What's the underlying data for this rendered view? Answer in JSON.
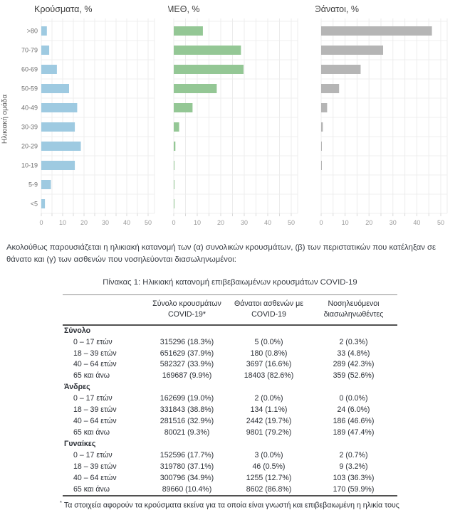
{
  "charts": {
    "ylabel": "Ηλικιακή ομάδα",
    "categories": [
      ">80",
      "70-79",
      "60-69",
      "50-59",
      "40-49",
      "30-39",
      "20-29",
      "10-19",
      "5-9",
      "<5"
    ],
    "xticks": [
      0,
      10,
      20,
      30,
      40,
      50
    ],
    "panels": [
      {
        "id": "cases",
        "title": "Κρούσματα, %",
        "color": "#9ecae1",
        "values": [
          2.6,
          3.7,
          7.3,
          13.0,
          16.8,
          15.7,
          18.5,
          15.7,
          4.5,
          1.7
        ]
      },
      {
        "id": "icu",
        "title": "ΜΕΘ, %",
        "color": "#94c795",
        "values": [
          12.4,
          28.6,
          29.7,
          18.3,
          8.0,
          2.3,
          0.7,
          0.2,
          0.1,
          0.2
        ]
      },
      {
        "id": "deaths",
        "title": "Θάνατοι, %",
        "color": "#b5b5b5",
        "values": [
          46.3,
          25.9,
          16.5,
          7.5,
          2.5,
          0.7,
          0.2,
          0.1,
          0.0,
          0.0
        ]
      }
    ]
  },
  "chart_data": [
    {
      "type": "bar",
      "orientation": "horizontal",
      "title": "Κρούσματα, %",
      "ylabel": "Ηλικιακή ομάδα",
      "xlabel": "",
      "categories": [
        ">80",
        "70-79",
        "60-69",
        "50-59",
        "40-49",
        "30-39",
        "20-29",
        "10-19",
        "5-9",
        "<5"
      ],
      "values": [
        2.6,
        3.7,
        7.3,
        13.0,
        16.8,
        15.7,
        18.5,
        15.7,
        4.5,
        1.7
      ],
      "xlim": [
        0,
        50
      ],
      "grid": true,
      "bar_color": "#9ecae1"
    },
    {
      "type": "bar",
      "orientation": "horizontal",
      "title": "ΜΕΘ, %",
      "ylabel": "Ηλικιακή ομάδα",
      "xlabel": "",
      "categories": [
        ">80",
        "70-79",
        "60-69",
        "50-59",
        "40-49",
        "30-39",
        "20-29",
        "10-19",
        "5-9",
        "<5"
      ],
      "values": [
        12.4,
        28.6,
        29.7,
        18.3,
        8.0,
        2.3,
        0.7,
        0.2,
        0.1,
        0.2
      ],
      "xlim": [
        0,
        50
      ],
      "grid": true,
      "bar_color": "#94c795"
    },
    {
      "type": "bar",
      "orientation": "horizontal",
      "title": "Θάνατοι, %",
      "ylabel": "Ηλικιακή ομάδα",
      "xlabel": "",
      "categories": [
        ">80",
        "70-79",
        "60-69",
        "50-59",
        "40-49",
        "30-39",
        "20-29",
        "10-19",
        "5-9",
        "<5"
      ],
      "values": [
        46.3,
        25.9,
        16.5,
        7.5,
        2.5,
        0.7,
        0.2,
        0.1,
        0.0,
        0.0
      ],
      "xlim": [
        0,
        50
      ],
      "grid": true,
      "bar_color": "#b5b5b5"
    }
  ],
  "intro": {
    "text": "Ακολούθως παρουσιάζεται η ηλικιακή κατανομή των (α) συνολικών κρουσμάτων, (β) των περιστατικών που κατέληξαν σε θάνατο και (γ) των ασθενών που νοσηλεύονται διασωληνωμένοι:"
  },
  "table": {
    "caption": "Πίνακας 1: Ηλικιακή κατανομή επιβεβαιωμένων κρουσμάτων COVID-19",
    "col_headers": [
      "Σύνολο κρουσμάτων COVID-19*",
      "Θάνατοι ασθενών με COVID-19",
      "Νοσηλευόμενοι διασωληνωθέντες"
    ],
    "sections": [
      {
        "name": "Σύνολο",
        "rows": [
          {
            "label": "0 – 17 ετών",
            "cases": "315296 (18.3%)",
            "deaths": "5 (0.0%)",
            "intubated": "2 (0.3%)"
          },
          {
            "label": "18 – 39 ετών",
            "cases": "651629 (37.9%)",
            "deaths": "180 (0.8%)",
            "intubated": "33 (4.8%)"
          },
          {
            "label": "40 – 64 ετών",
            "cases": "582327 (33.9%)",
            "deaths": "3697 (16.6%)",
            "intubated": "289 (42.3%)"
          },
          {
            "label": "65 και άνω",
            "cases": "169687 (9.9%)",
            "deaths": "18403 (82.6%)",
            "intubated": "359 (52.6%)"
          }
        ]
      },
      {
        "name": "Άνδρες",
        "rows": [
          {
            "label": "0 – 17 ετών",
            "cases": "162699 (19.0%)",
            "deaths": "2 (0.0%)",
            "intubated": "0 (0.0%)"
          },
          {
            "label": "18 – 39 ετών",
            "cases": "331843 (38.8%)",
            "deaths": "134 (1.1%)",
            "intubated": "24 (6.0%)"
          },
          {
            "label": "40 – 64 ετών",
            "cases": "281516 (32.9%)",
            "deaths": "2442 (19.7%)",
            "intubated": "186 (46.6%)"
          },
          {
            "label": "65 και άνω",
            "cases": "80021 (9.3%)",
            "deaths": "9801 (79.2%)",
            "intubated": "189 (47.4%)"
          }
        ]
      },
      {
        "name": "Γυναίκες",
        "rows": [
          {
            "label": "0 – 17 ετών",
            "cases": "152596 (17.7%)",
            "deaths": "3 (0.0%)",
            "intubated": "2 (0.7%)"
          },
          {
            "label": "18 – 39 ετών",
            "cases": "319780 (37.1%)",
            "deaths": "46 (0.5%)",
            "intubated": "9 (3.2%)"
          },
          {
            "label": "40 – 64 ετών",
            "cases": "300796 (34.9%)",
            "deaths": "1255 (12.7%)",
            "intubated": "103 (36.3%)"
          },
          {
            "label": "65 και άνω",
            "cases": "89660 (10.4%)",
            "deaths": "8602 (86.8%)",
            "intubated": "170 (59.9%)"
          }
        ]
      }
    ],
    "footnote_marker": "*",
    "footnote": "Τα στοιχεία αφορούν τα κρούσματα εκείνα για τα οποία είναι γνωστή και επιβεβαιωμένη η ηλικία τους"
  }
}
